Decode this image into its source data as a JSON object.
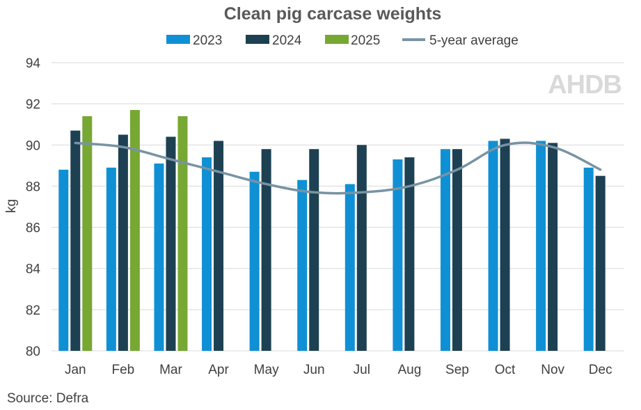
{
  "chart_data": {
    "type": "bar",
    "title": "Clean pig carcase weights",
    "ylabel": "kg",
    "xlabel": "",
    "ylim": [
      80,
      94
    ],
    "yticks": [
      80,
      82,
      84,
      86,
      88,
      90,
      92,
      94
    ],
    "grid": true,
    "legend_position": "top-center",
    "categories": [
      "Jan",
      "Feb",
      "Mar",
      "Apr",
      "May",
      "Jun",
      "Jul",
      "Aug",
      "Sep",
      "Oct",
      "Nov",
      "Dec"
    ],
    "series": [
      {
        "name": "2023",
        "type": "bar",
        "color": "#0f90d4",
        "values": [
          88.8,
          88.9,
          89.1,
          89.4,
          88.7,
          88.3,
          88.1,
          89.3,
          89.8,
          90.2,
          90.2,
          88.9
        ]
      },
      {
        "name": "2024",
        "type": "bar",
        "color": "#1d4152",
        "values": [
          90.7,
          90.5,
          90.4,
          90.2,
          89.8,
          89.8,
          90.0,
          89.4,
          89.8,
          90.3,
          90.1,
          88.5
        ]
      },
      {
        "name": "2025",
        "type": "bar",
        "color": "#77a833",
        "values": [
          91.4,
          91.7,
          91.4,
          null,
          null,
          null,
          null,
          null,
          null,
          null,
          null,
          null
        ]
      },
      {
        "name": "5-year average",
        "type": "line",
        "color": "#7893a3",
        "values": [
          90.1,
          89.9,
          89.3,
          88.7,
          88.1,
          87.7,
          87.7,
          88.0,
          88.8,
          90.0,
          89.9,
          88.8
        ]
      }
    ]
  },
  "source": "Source: Defra",
  "logo_text": "AHDB",
  "colors": {
    "grid": "#d9d9d9",
    "text": "#404040",
    "title": "#595959",
    "logo": "#d9d9d9"
  }
}
